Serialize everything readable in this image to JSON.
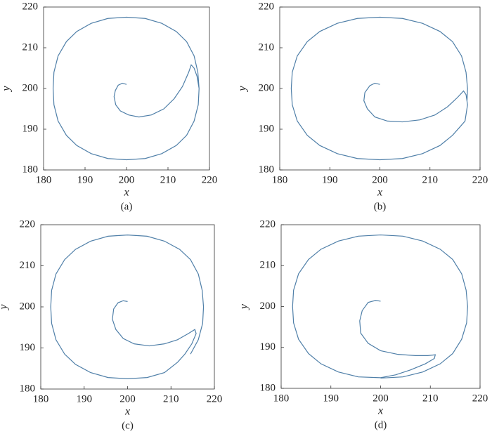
{
  "chart_data": [
    {
      "type": "line",
      "caption": "(a)",
      "xlabel": "x",
      "ylabel": "y",
      "color": "#4f7fa8",
      "xlim": [
        180,
        220
      ],
      "ylim": [
        180,
        220
      ],
      "xticks": [
        180,
        190,
        200,
        210,
        220
      ],
      "yticks": [
        180,
        190,
        200,
        210,
        220
      ],
      "x": [
        200,
        199,
        198,
        197.3,
        197,
        197.4,
        198.5,
        200.5,
        203,
        206,
        209,
        211.5,
        213.5,
        215,
        215.6,
        216.3,
        217,
        217.5,
        217.3,
        216.3,
        214.5,
        212,
        208.5,
        204.5,
        200,
        195.5,
        191.5,
        188,
        185.5,
        183.5,
        182.5,
        182.3,
        182.5,
        183.5,
        185.5,
        188,
        191.5,
        195.5,
        200,
        204.5,
        208.5,
        212,
        214.5,
        216.3,
        217.2,
        217.5
      ],
      "values": [
        201,
        201.3,
        200.8,
        199.5,
        198,
        196,
        194.5,
        193.5,
        193,
        193.5,
        195,
        197.5,
        200.5,
        204,
        205.8,
        205,
        203,
        200,
        196,
        192,
        188.5,
        186,
        184,
        182.8,
        182.5,
        182.8,
        184,
        186,
        188.5,
        192,
        196,
        200,
        204,
        208,
        211.5,
        214,
        216,
        217.2,
        217.5,
        217.2,
        216,
        214,
        211.5,
        208,
        204,
        200
      ]
    },
    {
      "type": "line",
      "caption": "(b)",
      "xlabel": "x",
      "ylabel": "y",
      "color": "#4f7fa8",
      "xlim": [
        180,
        220
      ],
      "ylim": [
        180,
        220
      ],
      "xticks": [
        180,
        190,
        200,
        210,
        220
      ],
      "yticks": [
        180,
        190,
        200,
        210,
        220
      ],
      "x": [
        200,
        199,
        198,
        197,
        196.8,
        197.5,
        199,
        201.5,
        204.5,
        208,
        211,
        213.5,
        215.5,
        216.7,
        217.2,
        217.5,
        217,
        216.3,
        214.5,
        212,
        208.5,
        204.5,
        200,
        195.5,
        191.5,
        188,
        185.5,
        183.5,
        182.5,
        182.3,
        182.5,
        183.5,
        185.5,
        188,
        191.5,
        195.5,
        200,
        204.5,
        208.5,
        212,
        214.5,
        216.3,
        217.2,
        217.5,
        217.4
      ],
      "values": [
        201,
        201.3,
        200.7,
        199,
        197,
        195,
        193,
        192,
        191.8,
        192.3,
        193.5,
        195.5,
        197.8,
        199.4,
        198.5,
        196,
        192,
        191,
        188.5,
        186,
        184,
        182.8,
        182.5,
        182.8,
        184,
        186,
        188.5,
        192,
        196,
        200,
        204,
        208,
        211.5,
        214,
        216,
        217.2,
        217.5,
        217.2,
        216,
        214,
        211.5,
        208,
        204,
        200,
        197
      ]
    },
    {
      "type": "line",
      "caption": "(c)",
      "xlabel": "x",
      "ylabel": "y",
      "color": "#4f7fa8",
      "xlim": [
        180,
        220
      ],
      "ylim": [
        180,
        220
      ],
      "xticks": [
        180,
        190,
        200,
        210,
        220
      ],
      "yticks": [
        180,
        190,
        200,
        210,
        220
      ],
      "x": [
        200,
        199,
        197.8,
        196.8,
        196.5,
        197.3,
        199,
        201.5,
        205,
        208.5,
        211.5,
        214,
        215.5,
        215.8,
        214.8,
        213.2,
        211.5,
        208.5,
        204.5,
        200,
        195.5,
        191.5,
        188,
        185.5,
        183.5,
        182.5,
        182.3,
        182.5,
        183.5,
        185.5,
        188,
        191.5,
        195.5,
        200,
        204.5,
        208.5,
        212,
        214.5,
        216.3,
        217.2,
        217.5,
        217.3,
        216.3,
        214.5
      ],
      "values": [
        201.3,
        201.5,
        201,
        199.5,
        197,
        194.5,
        192.3,
        191,
        190.5,
        191,
        192,
        193.5,
        194.5,
        193.5,
        191,
        188.5,
        186.5,
        184,
        182.8,
        182.5,
        182.8,
        184,
        186,
        188.5,
        192,
        196,
        200,
        204,
        208,
        211.5,
        214,
        216,
        217.2,
        217.5,
        217.2,
        216,
        214,
        211.5,
        208,
        204,
        200,
        196,
        192,
        188.5
      ]
    },
    {
      "type": "line",
      "caption": "(d)",
      "xlabel": "x",
      "ylabel": "y",
      "color": "#4f7fa8",
      "xlim": [
        180,
        220
      ],
      "ylim": [
        180,
        220
      ],
      "xticks": [
        180,
        190,
        200,
        210,
        220
      ],
      "yticks": [
        180,
        190,
        200,
        210,
        220
      ],
      "x": [
        200,
        199,
        197.5,
        196.3,
        195.8,
        196,
        197.5,
        200,
        203.5,
        207,
        209.5,
        211,
        210.8,
        209,
        206,
        203,
        200,
        195.5,
        191.5,
        188,
        185.5,
        183.5,
        182.5,
        182.3,
        182.5,
        183.5,
        185.5,
        188,
        191.5,
        195.5,
        200,
        204.5,
        208.5,
        212,
        214.5,
        216.3,
        217.2,
        217.5,
        217.3,
        216.3,
        214.5,
        212,
        208.5,
        204.5,
        200
      ],
      "values": [
        201.3,
        201.5,
        201,
        199,
        196.5,
        193.5,
        191,
        189.2,
        188.3,
        188,
        188,
        188.2,
        187.3,
        186,
        184.5,
        183.3,
        182.6,
        182.8,
        184,
        186,
        188.5,
        192,
        196,
        200,
        204,
        208,
        211.5,
        214,
        216,
        217.2,
        217.5,
        217.2,
        216,
        214,
        211.5,
        208,
        204,
        200,
        196,
        192,
        188.5,
        186,
        184,
        182.8,
        182.5
      ]
    }
  ]
}
